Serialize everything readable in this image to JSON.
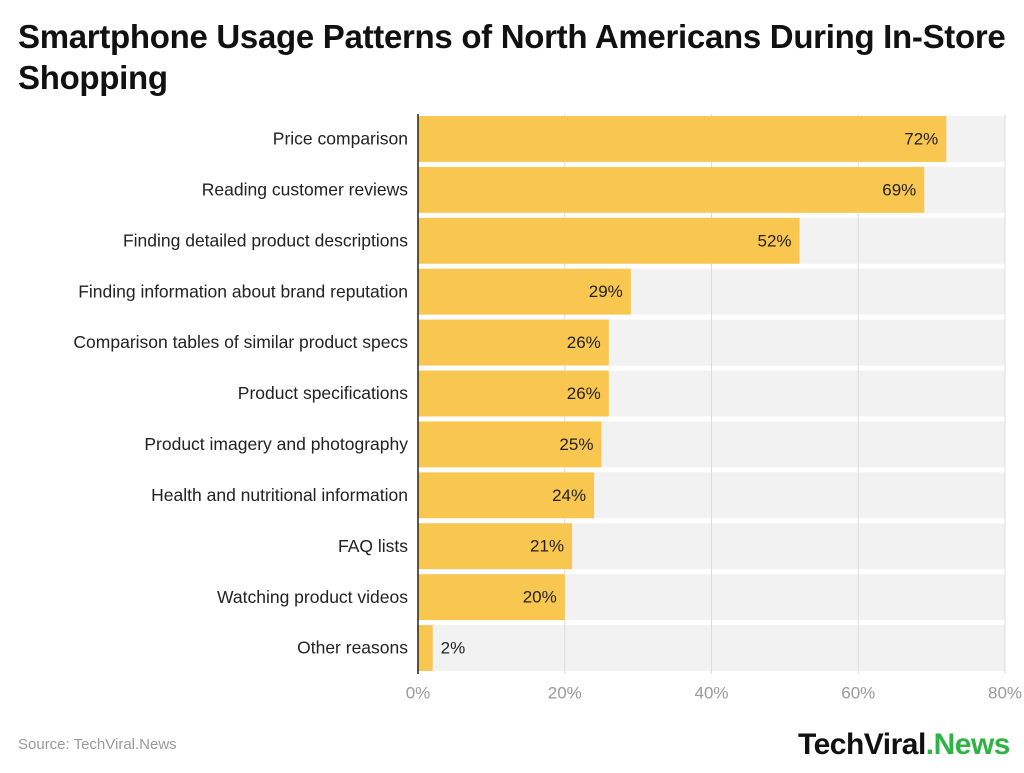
{
  "chart_data": {
    "type": "bar",
    "orientation": "horizontal",
    "title": "Smartphone Usage Patterns of North Americans During In-Store Shopping",
    "categories": [
      "Price comparison",
      "Reading customer reviews",
      "Finding detailed product descriptions",
      "Finding information about brand reputation",
      "Comparison tables of similar product specs",
      "Product specifications",
      "Product imagery and photography",
      "Health and nutritional information",
      "FAQ lists",
      "Watching product videos",
      "Other reasons"
    ],
    "values": [
      72,
      69,
      52,
      29,
      26,
      26,
      25,
      24,
      21,
      20,
      2
    ],
    "value_labels": [
      "72%",
      "69%",
      "52%",
      "29%",
      "26%",
      "26%",
      "25%",
      "24%",
      "21%",
      "20%",
      "2%"
    ],
    "color": "#f9c74f",
    "xlim": [
      0,
      80
    ],
    "xticks": [
      {
        "value": 0,
        "label": "0%"
      },
      {
        "value": 20,
        "label": "20%"
      },
      {
        "value": 40,
        "label": "40%"
      },
      {
        "value": 60,
        "label": "60%"
      },
      {
        "value": 80,
        "label": "80%"
      }
    ],
    "grid": true,
    "source": "Source: TechViral.News",
    "brand": {
      "name": "TechViral",
      "suffix": ".News"
    }
  }
}
